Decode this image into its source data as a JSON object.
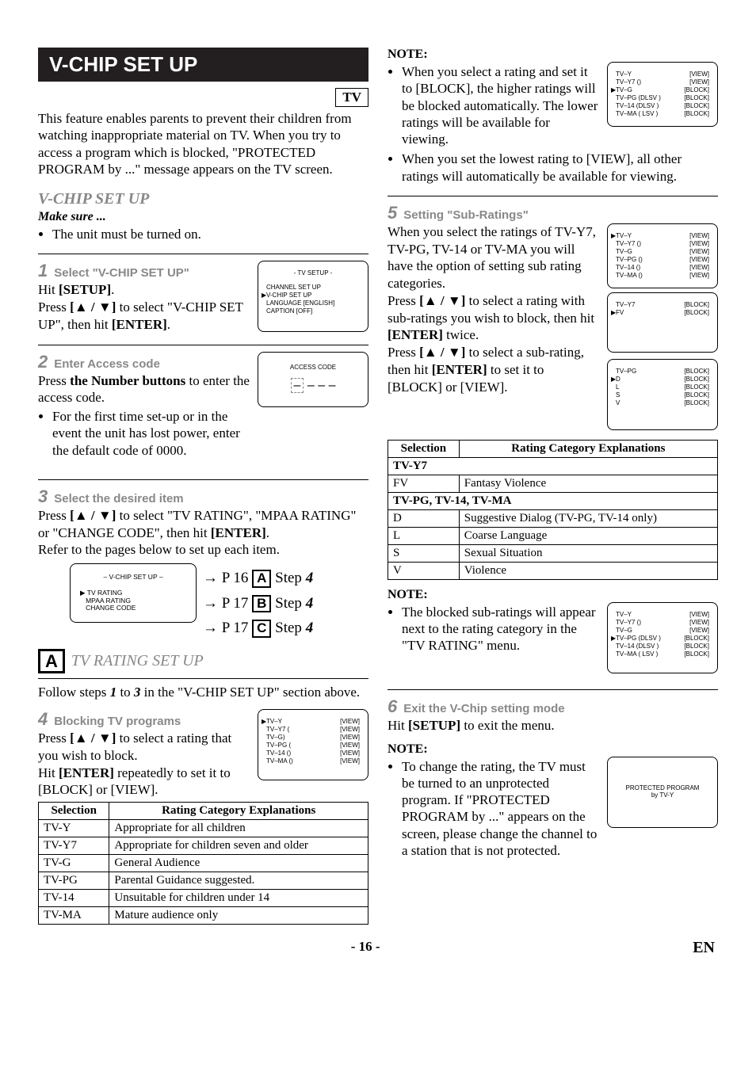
{
  "title_bar": "V-CHIP SET UP",
  "tv_badge": "TV",
  "intro": "This feature enables parents to prevent their children from watching inappropriate material on TV. When you try to access a program which is blocked, \"PROTECTED PROGRAM by ...\" message appears on the TV screen.",
  "section_title": "V-CHIP SET UP",
  "make_sure": "Make sure ...",
  "make_sure_item": "The unit must be turned on.",
  "step1": {
    "num": "1",
    "label": "Select \"V-CHIP SET UP\"",
    "line1": "Hit ",
    "k1": "[SETUP]",
    "line1b": ".",
    "line2a": "Press ",
    "k2": "[▲ / ▼]",
    "line2b": " to select \"V-CHIP SET UP\", then hit ",
    "k3": "[ENTER]",
    "line2c": "."
  },
  "osd1": {
    "title": "- TV SETUP -",
    "items": [
      "CHANNEL SET UP",
      "V-CHIP SET UP",
      "LANGUAGE   [ENGLISH]",
      "CAPTION   [OFF]"
    ]
  },
  "step2": {
    "num": "2",
    "label": "Enter Access code",
    "line1a": "Press ",
    "k1": "the Number buttons",
    "line1b": " to enter the access code.",
    "bullet": "For the first time set-up or in the event the unit has lost power, enter the default code of 0000."
  },
  "osd2": {
    "title": "ACCESS CODE"
  },
  "step3": {
    "num": "3",
    "label": "Select the desired item",
    "body_a": "Press ",
    "k1": "[▲ / ▼]",
    "body_b": " to select \"TV RATING\", \"MPAA RATING\" or \"CHANGE CODE\", then hit ",
    "k2": "[ENTER]",
    "body_c": ".",
    "body2": "Refer to the pages below to set up each item."
  },
  "vchip_menu": {
    "title": "– V-CHIP SET UP –",
    "items": [
      "TV RATING",
      "MPAA RATING",
      "CHANGE CODE"
    ]
  },
  "refs": [
    {
      "page": "P 16",
      "box": "A",
      "step": "Step ",
      "n": "4"
    },
    {
      "page": "P 17",
      "box": "B",
      "step": "Step ",
      "n": "4"
    },
    {
      "page": "P 17",
      "box": "C",
      "step": "Step ",
      "n": "4"
    }
  ],
  "a_header": "TV RATING SET UP",
  "a_intro_a": "Follow steps ",
  "a_s1": "1",
  "a_to": " to ",
  "a_s3": "3",
  "a_intro_b": " in the \"V-CHIP SET UP\" section above.",
  "step4": {
    "num": "4",
    "label": "Blocking TV programs",
    "l1a": "Press ",
    "k1": "[▲ / ▼]",
    "l1b": " to select a rating that you wish to block.",
    "l2a": "Hit ",
    "k2": "[ENTER]",
    "l2b": " repeatedly to set it to [BLOCK] or [VIEW]."
  },
  "osd4_rows": [
    [
      "TV–Y",
      "",
      "[VIEW]"
    ],
    [
      "TV–Y7 (",
      "",
      "[VIEW]"
    ],
    [
      "TV–G",
      ")",
      "[VIEW]"
    ],
    [
      "TV–PG (",
      "",
      "[VIEW]"
    ],
    [
      "TV–14  (",
      ")",
      "[VIEW]"
    ],
    [
      "TV–MA (",
      ")",
      "[VIEW]"
    ]
  ],
  "rating_table": {
    "h1": "Selection",
    "h2": "Rating Category Explanations",
    "rows": [
      [
        "TV-Y",
        "Appropriate for all children"
      ],
      [
        "TV-Y7",
        "Appropriate for children seven and older"
      ],
      [
        "TV-G",
        "General Audience"
      ],
      [
        "TV-PG",
        "Parental Guidance suggested."
      ],
      [
        "TV-14",
        "Unsuitable for children under 14"
      ],
      [
        "TV-MA",
        "Mature audience only"
      ]
    ]
  },
  "note_r1": "NOTE:",
  "note_r1_bullets": [
    "When you select a rating and set it to [BLOCK], the higher ratings will be blocked automatically. The lower ratings will be available for viewing.",
    "When you set the lowest rating to [VIEW], all other ratings will automatically be available for viewing."
  ],
  "osd_r1_rows": [
    [
      "TV–Y",
      "",
      "[VIEW]"
    ],
    [
      "TV–Y7 (",
      ")",
      "[VIEW]"
    ],
    [
      "TV–G",
      "",
      "[BLOCK]"
    ],
    [
      "TV–PG (DLSV )",
      "",
      "[BLOCK]"
    ],
    [
      "TV–14  (DLSV )",
      "",
      "[BLOCK]"
    ],
    [
      "TV–MA (  LSV )",
      "",
      "[BLOCK]"
    ]
  ],
  "step5": {
    "num": "5",
    "label": "Setting \"Sub-Ratings\"",
    "p1": "When you select the ratings of TV-Y7, TV-PG, TV-14 or TV-MA you will have the option of setting sub rating categories.",
    "p2a": "Press ",
    "k1": "[▲ / ▼]",
    "p2b": " to select a rating with sub-ratings you wish to block, then hit ",
    "k2": "[ENTER]",
    "p2c": " twice.",
    "p3a": "Press ",
    "k3": "[▲ / ▼]",
    "p3b": " to select a sub-rating, then hit ",
    "k4": "[ENTER]",
    "p3c": " to set it to [BLOCK] or [VIEW]."
  },
  "osd_r2_rows": [
    [
      "TV–Y",
      "",
      "[VIEW]"
    ],
    [
      "TV–Y7 (",
      ")",
      "[VIEW]"
    ],
    [
      "TV–G",
      "",
      "[VIEW]"
    ],
    [
      "TV–PG (",
      ")",
      "[VIEW]"
    ],
    [
      "TV–14  (",
      ")",
      "[VIEW]"
    ],
    [
      "TV–MA (",
      ")",
      "[VIEW]"
    ]
  ],
  "osd_r3_rows": [
    [
      "TV–Y7",
      "",
      "[BLOCK]"
    ],
    [
      "FV",
      "",
      "[BLOCK]"
    ]
  ],
  "osd_r4_rows": [
    [
      "TV–PG",
      "",
      "[BLOCK]"
    ],
    [
      "D",
      "",
      "[BLOCK]"
    ],
    [
      "L",
      "",
      "[BLOCK]"
    ],
    [
      "S",
      "",
      "[BLOCK]"
    ],
    [
      "V",
      "",
      "[BLOCK]"
    ]
  ],
  "sub_table": {
    "h1": "Selection",
    "h2": "Rating Category Explanations",
    "g1": "TV-Y7",
    "r1": [
      "FV",
      "Fantasy Violence"
    ],
    "g2": "TV-PG, TV-14, TV-MA",
    "rows": [
      [
        "D",
        "Suggestive Dialog   (TV-PG, TV-14 only)"
      ],
      [
        "L",
        "Coarse Language"
      ],
      [
        "S",
        "Sexual Situation"
      ],
      [
        "V",
        "Violence"
      ]
    ]
  },
  "note_r2": "NOTE:",
  "note_r2_bullet": "The blocked sub-ratings will appear next to the rating category in the \"TV RATING\" menu.",
  "osd_r5_rows": [
    [
      "TV–Y",
      "",
      "[VIEW]"
    ],
    [
      "TV–Y7 (",
      ")",
      "[VIEW]"
    ],
    [
      "TV–G",
      "",
      "[VIEW]"
    ],
    [
      "TV–PG (DLSV )",
      "",
      "[BLOCK]"
    ],
    [
      "TV–14  (DLSV )",
      "",
      "[BLOCK]"
    ],
    [
      "TV–MA (  LSV )",
      "",
      "[BLOCK]"
    ]
  ],
  "step6": {
    "num": "6",
    "label": "Exit the V-Chip setting mode",
    "l1a": "Hit ",
    "k1": "[SETUP]",
    "l1b": " to exit the menu."
  },
  "note_r3": "NOTE:",
  "note_r3_bullet": "To change the rating, the TV must be turned to an unprotected program. If \"PROTECTED PROGRAM by ...\" appears on the screen, please change the channel to a station that is not protected.",
  "protected_box_l1": "PROTECTED PROGRAM",
  "protected_box_l2": "by TV-Y",
  "footer_page": "- 16 -",
  "footer_en": "EN"
}
